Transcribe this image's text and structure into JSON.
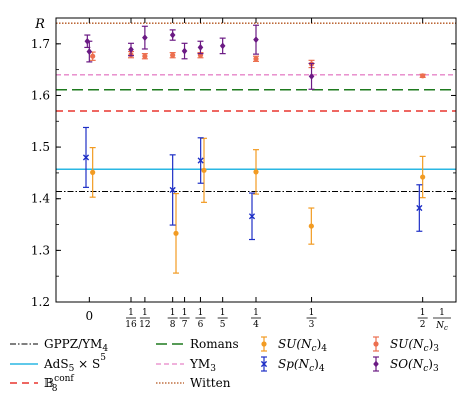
{
  "chart_data": {
    "type": "scatter",
    "title": "",
    "ylabel": "R",
    "xlabel_parts": {
      "num": "1",
      "den": "N",
      "den_sub": "c"
    },
    "xlim": [
      -0.05,
      0.55
    ],
    "ylim": [
      1.2,
      1.75
    ],
    "y_ticks": [
      1.2,
      1.3,
      1.4,
      1.5,
      1.6,
      1.7
    ],
    "y_tick_labels": [
      "1.2",
      "1.3",
      "1.4",
      "1.5",
      "1.6",
      "1.7"
    ],
    "x_ticks": [
      {
        "value": 0,
        "label": "0",
        "kind": "int"
      },
      {
        "value": 0.0625,
        "num": "1",
        "den": "16",
        "kind": "frac"
      },
      {
        "value": 0.08333,
        "num": "1",
        "den": "12",
        "kind": "frac"
      },
      {
        "value": 0.125,
        "num": "1",
        "den": "8",
        "kind": "frac"
      },
      {
        "value": 0.142857,
        "num": "1",
        "den": "7",
        "kind": "frac"
      },
      {
        "value": 0.16667,
        "num": "1",
        "den": "6",
        "kind": "frac"
      },
      {
        "value": 0.2,
        "num": "1",
        "den": "5",
        "kind": "frac"
      },
      {
        "value": 0.25,
        "num": "1",
        "den": "4",
        "kind": "frac"
      },
      {
        "value": 0.33333,
        "num": "1",
        "den": "3",
        "kind": "frac"
      },
      {
        "value": 0.5,
        "num": "1",
        "den": "2",
        "kind": "frac"
      }
    ],
    "reference_lines": [
      {
        "name": "GPPZ/YM",
        "name_sub": "4",
        "value": 1.414,
        "color": "#000000",
        "dash": "6,2,1.5,2",
        "width": 1.1
      },
      {
        "name": "AdS",
        "name_sub": "5",
        "name_rest": " × S",
        "name_sup": "5",
        "value": 1.457,
        "color": "#2ab7e3",
        "dash": "",
        "width": 1.5
      },
      {
        "name": "B",
        "name_sub": "8",
        "name_sup": "conf",
        "value": 1.57,
        "color": "#e8352e",
        "dash": "7,5",
        "width": 1.5
      },
      {
        "name": "Romans",
        "value": 1.611,
        "color": "#1e7a1e",
        "dash": "11,5",
        "width": 1.5
      },
      {
        "name": "YM",
        "name_sub": "3",
        "value": 1.64,
        "color": "#e684c8",
        "dash": "5,3",
        "width": 1.3
      },
      {
        "name": "Witten",
        "value": 1.74,
        "color": "#b3531c",
        "dash": "1.5,1.5",
        "width": 1.3
      }
    ],
    "series": [
      {
        "name": "SU(N",
        "name_sub": "c",
        "name_rest": ")",
        "name_sub2": "4",
        "marker": "dot",
        "color": "#f29b22",
        "points": [
          {
            "x": 0.005,
            "y": 1.451,
            "err": 0.048
          },
          {
            "x": 0.13,
            "y": 1.333,
            "err": 0.077
          },
          {
            "x": 0.172,
            "y": 1.455,
            "err": 0.062
          },
          {
            "x": 0.25,
            "y": 1.452,
            "err": 0.043
          },
          {
            "x": 0.333,
            "y": 1.347,
            "err": 0.035
          },
          {
            "x": 0.5,
            "y": 1.442,
            "err": 0.04
          }
        ]
      },
      {
        "name": "Sp(N",
        "name_sub": "c",
        "name_rest": ")",
        "name_sub2": "4",
        "marker": "x",
        "color": "#1e2fc6",
        "points": [
          {
            "x": -0.005,
            "y": 1.48,
            "err": 0.058
          },
          {
            "x": 0.125,
            "y": 1.417,
            "err": 0.068
          },
          {
            "x": 0.167,
            "y": 1.474,
            "err": 0.044
          },
          {
            "x": 0.244,
            "y": 1.366,
            "err": 0.045
          },
          {
            "x": 0.495,
            "y": 1.382,
            "err": 0.045
          }
        ]
      },
      {
        "name": "SU(N",
        "name_sub": "c",
        "name_rest": ")",
        "name_sub2": "3",
        "marker": "dot",
        "color": "#ec6f4f",
        "points": [
          {
            "x": 0.005,
            "y": 1.676,
            "err": 0.008
          },
          {
            "x": 0.0625,
            "y": 1.679,
            "err": 0.006
          },
          {
            "x": 0.0833,
            "y": 1.676,
            "err": 0.005
          },
          {
            "x": 0.125,
            "y": 1.678,
            "err": 0.005
          },
          {
            "x": 0.1667,
            "y": 1.678,
            "err": 0.005
          },
          {
            "x": 0.25,
            "y": 1.671,
            "err": 0.005
          },
          {
            "x": 0.3333,
            "y": 1.661,
            "err": 0.007
          },
          {
            "x": 0.5,
            "y": 1.638,
            "err": 0.003
          }
        ]
      },
      {
        "name": "SO(N",
        "name_sub": "c",
        "name_rest": ")",
        "name_sub2": "3",
        "marker": "diamond",
        "color": "#6b1a84",
        "points": [
          {
            "x": -0.003,
            "y": 1.705,
            "err": 0.012
          },
          {
            "x": 0.0,
            "y": 1.685,
            "err": 0.02
          },
          {
            "x": 0.0625,
            "y": 1.689,
            "err": 0.012
          },
          {
            "x": 0.0833,
            "y": 1.712,
            "err": 0.022
          },
          {
            "x": 0.125,
            "y": 1.717,
            "err": 0.01
          },
          {
            "x": 0.1428,
            "y": 1.686,
            "err": 0.015
          },
          {
            "x": 0.1667,
            "y": 1.693,
            "err": 0.012
          },
          {
            "x": 0.2,
            "y": 1.696,
            "err": 0.015
          },
          {
            "x": 0.25,
            "y": 1.708,
            "err": 0.028
          },
          {
            "x": 0.3333,
            "y": 1.637,
            "err": 0.025
          }
        ]
      }
    ],
    "legend": {
      "placement": "bottom",
      "columns": [
        [
          "ref:0",
          "ref:1",
          "ref:2"
        ],
        [
          "ref:3",
          "ref:4",
          "ref:5"
        ],
        [
          "series:0",
          "series:1"
        ],
        [
          "series:2",
          "series:3"
        ]
      ]
    }
  }
}
